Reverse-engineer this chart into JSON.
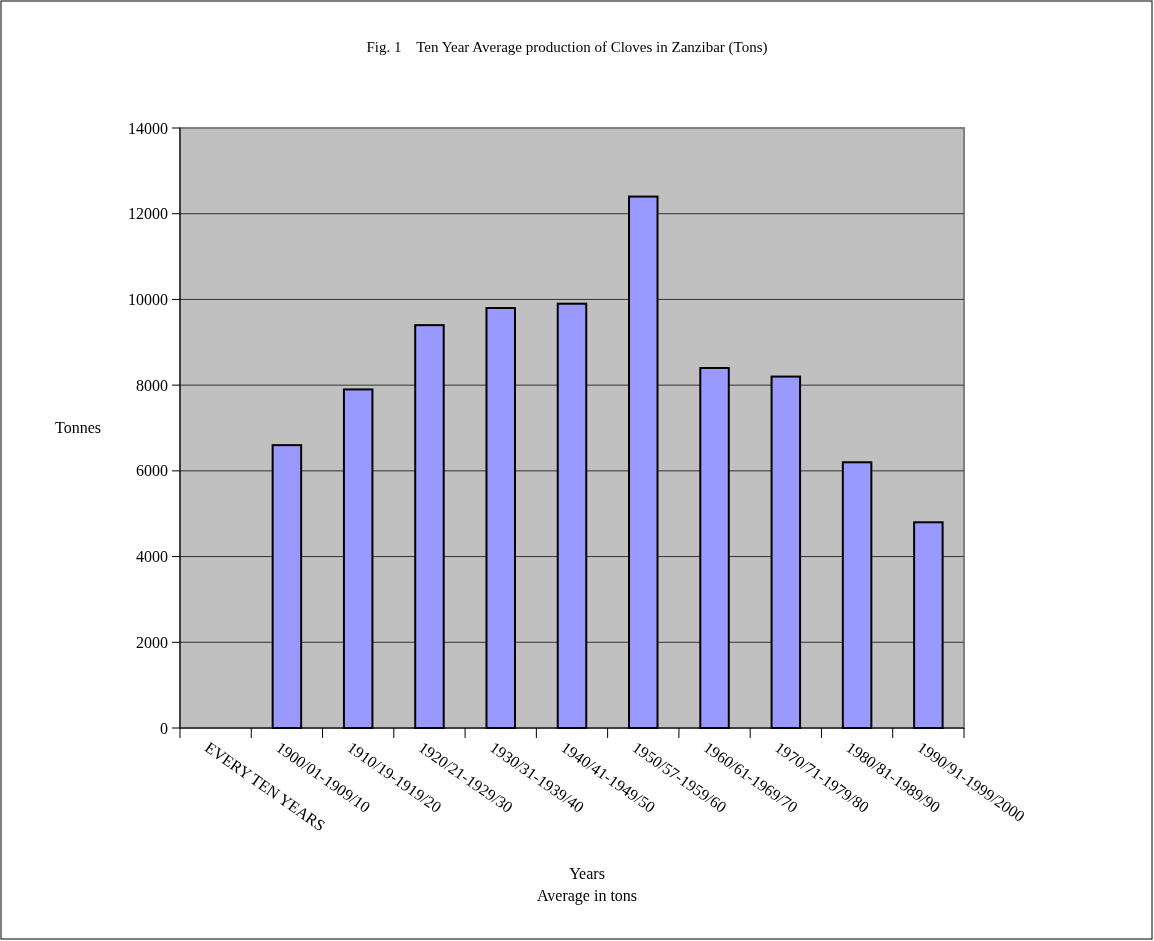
{
  "chart_data": {
    "type": "bar",
    "title": "Fig. 1    Ten Year Average production of Cloves in Zanzibar (Tons)",
    "xlabel": "Years\nAverage in tons",
    "ylabel": "Tonnes",
    "categories": [
      "EVERY TEN YEARS",
      "1900/01-1909/10",
      "1910/19-1919/20",
      "1920/21-1929/30",
      "1930/31-1939/40",
      "1940/41-1949/50",
      "1950/57-1959/60",
      "1960/61-1969/70",
      "1970/71-1979/80",
      "1980/81-1989/90",
      "1990/91-1999/2000"
    ],
    "values": [
      null,
      6600,
      7900,
      9400,
      9800,
      9900,
      12400,
      8400,
      8200,
      6200,
      4800
    ],
    "color": "#9999ff",
    "ylim": [
      0,
      14000
    ],
    "yticks": [
      0,
      2000,
      4000,
      6000,
      8000,
      10000,
      12000,
      14000
    ],
    "grid": "y"
  }
}
